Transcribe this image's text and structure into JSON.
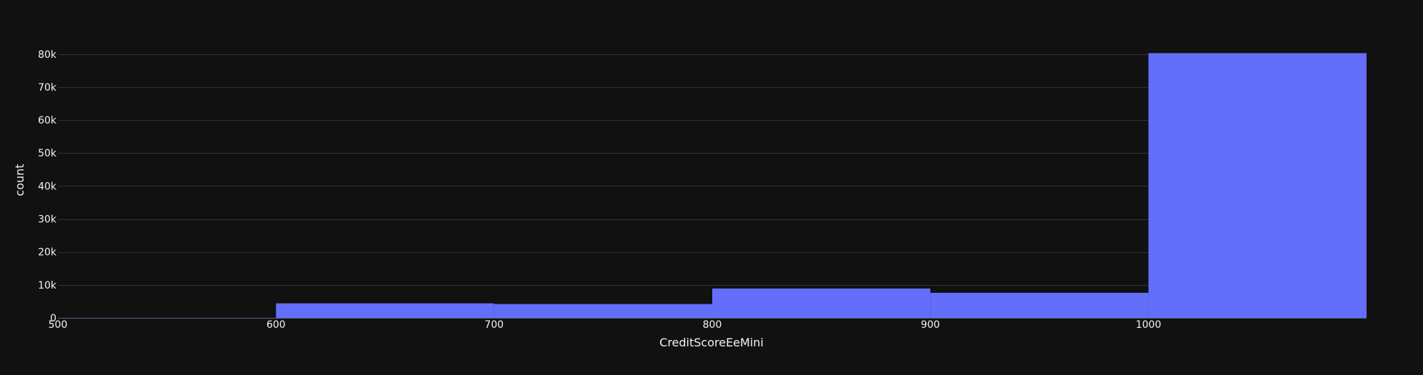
{
  "chart_data": {
    "type": "bar",
    "title": "",
    "xlabel": "CreditScoreEeMini",
    "ylabel": "count",
    "bins": [
      {
        "x0": 500,
        "x1": 600,
        "count": 0
      },
      {
        "x0": 600,
        "x1": 700,
        "count": 4400
      },
      {
        "x0": 700,
        "x1": 800,
        "count": 4200
      },
      {
        "x0": 800,
        "x1": 900,
        "count": 8900
      },
      {
        "x0": 900,
        "x1": 1000,
        "count": 7600
      },
      {
        "x0": 1000,
        "x1": 1100,
        "count": 80300
      }
    ],
    "xlim": [
      500,
      1100
    ],
    "ylim": [
      0,
      84500
    ],
    "x_ticks": [
      500,
      600,
      700,
      800,
      900,
      1000
    ],
    "x_tick_labels": [
      "500",
      "600",
      "700",
      "800",
      "900",
      "1000"
    ],
    "y_ticks": [
      0,
      10000,
      20000,
      30000,
      40000,
      50000,
      60000,
      70000,
      80000
    ],
    "y_tick_labels": [
      "0",
      "10k",
      "20k",
      "30k",
      "40k",
      "50k",
      "60k",
      "70k",
      "80k"
    ],
    "grid": true,
    "legend": "none",
    "colors": {
      "background": "#111111",
      "bar": "#636efa",
      "grid": "#283442",
      "zeroline": "#506784",
      "text": "#f2f5fa"
    }
  }
}
